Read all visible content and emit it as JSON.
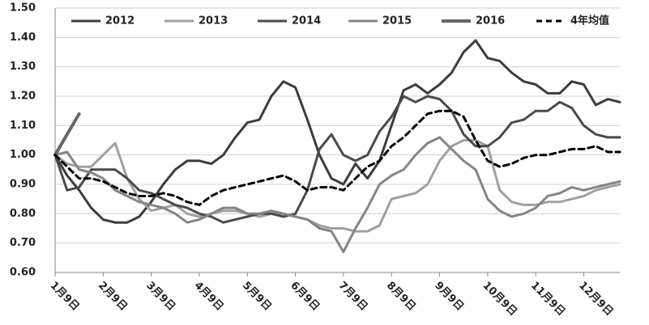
{
  "chart_data": {
    "type": "line",
    "categories": [
      "1月9日",
      null,
      null,
      null,
      "2月9日",
      null,
      null,
      null,
      "3月9日",
      null,
      null,
      null,
      "4月9日",
      null,
      null,
      null,
      "5月9日",
      null,
      null,
      null,
      "6月9日",
      null,
      null,
      null,
      "7月9日",
      null,
      null,
      null,
      "8月9日",
      null,
      null,
      null,
      "9月9日",
      null,
      null,
      null,
      "10月9日",
      null,
      null,
      null,
      "11月9日",
      null,
      null,
      null,
      "12月9日",
      null,
      null,
      null
    ],
    "series": [
      {
        "name": "2012",
        "color": "#3c3c3c",
        "width": 3,
        "dash": false,
        "values": [
          1.0,
          0.93,
          0.88,
          0.82,
          0.78,
          0.77,
          0.77,
          0.79,
          0.84,
          0.9,
          0.95,
          0.98,
          0.98,
          0.97,
          1.0,
          1.06,
          1.11,
          1.12,
          1.2,
          1.25,
          1.23,
          1.12,
          1.0,
          0.92,
          0.9,
          0.97,
          0.92,
          0.98,
          1.1,
          1.22,
          1.24,
          1.21,
          1.24,
          1.28,
          1.35,
          1.39,
          1.33,
          1.32,
          1.28,
          1.25,
          1.24,
          1.21,
          1.21,
          1.25,
          1.24,
          1.17,
          1.19,
          1.18
        ]
      },
      {
        "name": "2013",
        "color": "#a0a0a0",
        "width": 3,
        "dash": false,
        "values": [
          1.0,
          0.97,
          0.96,
          0.96,
          1.0,
          1.04,
          0.92,
          0.85,
          0.81,
          0.82,
          0.83,
          0.8,
          0.79,
          0.8,
          0.81,
          0.81,
          0.8,
          0.79,
          0.8,
          0.8,
          0.79,
          0.78,
          0.76,
          0.75,
          0.75,
          0.74,
          0.74,
          0.76,
          0.85,
          0.86,
          0.87,
          0.9,
          0.98,
          1.03,
          1.05,
          1.05,
          1.03,
          0.88,
          0.84,
          0.83,
          0.83,
          0.84,
          0.84,
          0.85,
          0.86,
          0.88,
          0.89,
          0.9
        ]
      },
      {
        "name": "2014",
        "color": "#4a4a4a",
        "width": 3,
        "dash": false,
        "values": [
          1.0,
          0.88,
          0.89,
          0.95,
          0.95,
          0.95,
          0.92,
          0.88,
          0.87,
          0.85,
          0.83,
          0.82,
          0.8,
          0.79,
          0.77,
          0.78,
          0.79,
          0.8,
          0.8,
          0.79,
          0.8,
          0.88,
          1.02,
          1.07,
          1.0,
          0.98,
          1.0,
          1.08,
          1.13,
          1.2,
          1.18,
          1.2,
          1.19,
          1.15,
          1.07,
          1.03,
          1.03,
          1.06,
          1.11,
          1.12,
          1.15,
          1.15,
          1.18,
          1.16,
          1.1,
          1.07,
          1.06,
          1.06
        ]
      },
      {
        "name": "2015",
        "color": "#858585",
        "width": 3,
        "dash": false,
        "values": [
          1.0,
          1.01,
          0.95,
          0.94,
          0.92,
          0.88,
          0.86,
          0.84,
          0.83,
          0.82,
          0.8,
          0.77,
          0.78,
          0.8,
          0.82,
          0.82,
          0.8,
          0.8,
          0.81,
          0.8,
          0.79,
          0.78,
          0.75,
          0.74,
          0.67,
          0.75,
          0.82,
          0.9,
          0.93,
          0.95,
          1.0,
          1.04,
          1.06,
          1.02,
          0.98,
          0.95,
          0.85,
          0.81,
          0.79,
          0.8,
          0.82,
          0.86,
          0.87,
          0.89,
          0.88,
          0.89,
          0.9,
          0.91
        ]
      },
      {
        "name": "2016",
        "color": "#666666",
        "width": 4,
        "dash": false,
        "values": [
          1.0,
          1.07,
          1.14,
          null,
          null,
          null,
          null,
          null,
          null,
          null,
          null,
          null,
          null,
          null,
          null,
          null,
          null,
          null,
          null,
          null,
          null,
          null,
          null,
          null,
          null,
          null,
          null,
          null,
          null,
          null,
          null,
          null,
          null,
          null,
          null,
          null,
          null,
          null,
          null,
          null,
          null,
          null,
          null,
          null,
          null,
          null,
          null,
          null
        ]
      },
      {
        "name": "4年均值",
        "color": "#000000",
        "width": 3,
        "dash": true,
        "values": [
          1.0,
          0.96,
          0.92,
          0.92,
          0.91,
          0.89,
          0.87,
          0.86,
          0.86,
          0.87,
          0.86,
          0.84,
          0.83,
          0.86,
          0.88,
          0.89,
          0.9,
          0.91,
          0.92,
          0.93,
          0.91,
          0.88,
          0.89,
          0.89,
          0.88,
          0.92,
          0.96,
          0.98,
          1.03,
          1.06,
          1.1,
          1.14,
          1.15,
          1.15,
          1.13,
          1.05,
          0.98,
          0.96,
          0.97,
          0.99,
          1.0,
          1.0,
          1.01,
          1.02,
          1.02,
          1.03,
          1.01,
          1.01
        ]
      }
    ],
    "ylim": [
      0.6,
      1.5
    ],
    "yticks": [
      {
        "value": 0.6,
        "label": "0.60"
      },
      {
        "value": 0.7,
        "label": "0.70"
      },
      {
        "value": 0.8,
        "label": "0.80"
      },
      {
        "value": 0.9,
        "label": "0.90"
      },
      {
        "value": 1.0,
        "label": "1.00"
      },
      {
        "value": 1.1,
        "label": "1.10"
      },
      {
        "value": 1.2,
        "label": "1.20"
      },
      {
        "value": 1.3,
        "label": "1.30"
      },
      {
        "value": 1.4,
        "label": "1.40"
      },
      {
        "value": 1.5,
        "label": "1.50"
      }
    ],
    "grid": true,
    "legend": "top"
  }
}
